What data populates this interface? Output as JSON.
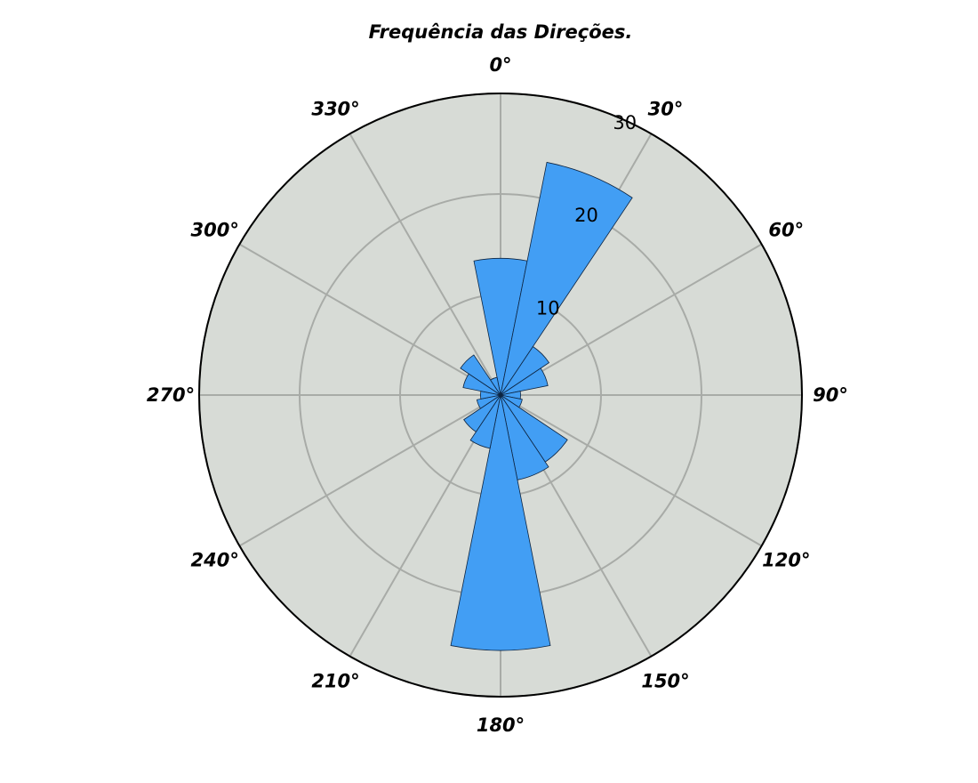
{
  "chart_data": {
    "type": "polar-bar",
    "title": "Frequência das Direções.",
    "theta_direction": "clockwise",
    "theta_zero": "north",
    "angle_ticks": [
      0,
      30,
      60,
      90,
      120,
      150,
      180,
      210,
      240,
      270,
      300,
      330
    ],
    "angle_tick_labels": [
      "0°",
      "30°",
      "60°",
      "90°",
      "120°",
      "150°",
      "180°",
      "210°",
      "240°",
      "270°",
      "300°",
      "330°"
    ],
    "radial_ticks": [
      10,
      20,
      30
    ],
    "radial_tick_labels": [
      "10",
      "20",
      "30"
    ],
    "rlim": [
      0,
      30
    ],
    "bin_width_deg": 22.5,
    "bins": [
      {
        "direction_deg": 0,
        "value": 13.6
      },
      {
        "direction_deg": 22.5,
        "value": 23.6
      },
      {
        "direction_deg": 45,
        "value": 5.8
      },
      {
        "direction_deg": 67.5,
        "value": 4.8
      },
      {
        "direction_deg": 90,
        "value": 2.0
      },
      {
        "direction_deg": 112.5,
        "value": 2.2
      },
      {
        "direction_deg": 135,
        "value": 8.0
      },
      {
        "direction_deg": 157.5,
        "value": 8.6
      },
      {
        "direction_deg": 180,
        "value": 25.4
      },
      {
        "direction_deg": 202.5,
        "value": 5.4
      },
      {
        "direction_deg": 225,
        "value": 4.4
      },
      {
        "direction_deg": 247.5,
        "value": 2.4
      },
      {
        "direction_deg": 270,
        "value": 2.0
      },
      {
        "direction_deg": 292.5,
        "value": 3.8
      },
      {
        "direction_deg": 315,
        "value": 4.8
      },
      {
        "direction_deg": 337.5,
        "value": 1.8
      }
    ],
    "colors": {
      "bar_fill": "#429ef4",
      "bar_edge": "#0d2440",
      "plot_background": "#d7dbd6",
      "grid": "#a8aba7",
      "frame": "#000000"
    },
    "grid": true,
    "legend": false
  }
}
